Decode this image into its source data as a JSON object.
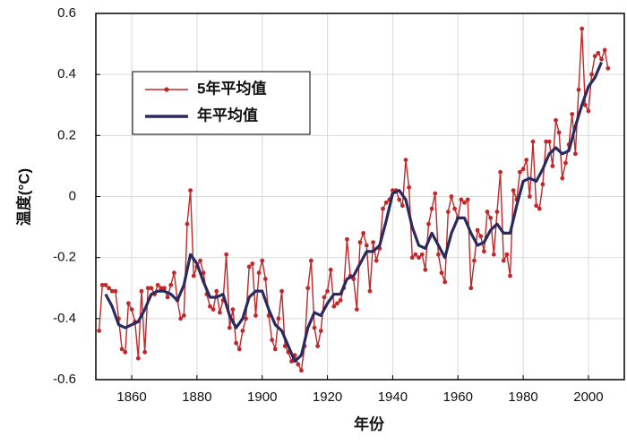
{
  "chart_data": {
    "type": "line",
    "xlabel": "年份",
    "ylabel": "温度(°C)",
    "x": [
      1850,
      1851,
      1852,
      1853,
      1854,
      1855,
      1856,
      1857,
      1858,
      1859,
      1860,
      1861,
      1862,
      1863,
      1864,
      1865,
      1866,
      1867,
      1868,
      1869,
      1870,
      1871,
      1872,
      1873,
      1874,
      1875,
      1876,
      1877,
      1878,
      1879,
      1880,
      1881,
      1882,
      1883,
      1884,
      1885,
      1886,
      1887,
      1888,
      1889,
      1890,
      1891,
      1892,
      1893,
      1894,
      1895,
      1896,
      1897,
      1898,
      1899,
      1900,
      1901,
      1902,
      1903,
      1904,
      1905,
      1906,
      1907,
      1908,
      1909,
      1910,
      1911,
      1912,
      1913,
      1914,
      1915,
      1916,
      1917,
      1918,
      1919,
      1920,
      1921,
      1922,
      1923,
      1924,
      1925,
      1926,
      1927,
      1928,
      1929,
      1930,
      1931,
      1932,
      1933,
      1934,
      1935,
      1936,
      1937,
      1938,
      1939,
      1940,
      1941,
      1942,
      1943,
      1944,
      1945,
      1946,
      1947,
      1948,
      1949,
      1950,
      1951,
      1952,
      1953,
      1954,
      1955,
      1956,
      1957,
      1958,
      1959,
      1960,
      1961,
      1962,
      1963,
      1964,
      1965,
      1966,
      1967,
      1968,
      1969,
      1970,
      1971,
      1972,
      1973,
      1974,
      1975,
      1976,
      1977,
      1978,
      1979,
      1980,
      1981,
      1982,
      1983,
      1984,
      1985,
      1986,
      1987,
      1988,
      1989,
      1990,
      1991,
      1992,
      1993,
      1994,
      1995,
      1996,
      1997,
      1998,
      1999,
      2000,
      2001,
      2002,
      2003,
      2004,
      2005,
      2006
    ],
    "series": [
      {
        "name": "5年平均值",
        "color": "#c0282a",
        "marker": true,
        "values": [
          -0.44,
          -0.29,
          -0.29,
          -0.3,
          -0.31,
          -0.31,
          -0.4,
          -0.5,
          -0.51,
          -0.35,
          -0.37,
          -0.41,
          -0.53,
          -0.31,
          -0.51,
          -0.3,
          -0.3,
          -0.32,
          -0.29,
          -0.3,
          -0.3,
          -0.33,
          -0.29,
          -0.25,
          -0.34,
          -0.4,
          -0.39,
          -0.09,
          0.02,
          -0.26,
          -0.23,
          -0.21,
          -0.25,
          -0.32,
          -0.36,
          -0.37,
          -0.31,
          -0.38,
          -0.34,
          -0.19,
          -0.43,
          -0.37,
          -0.48,
          -0.5,
          -0.44,
          -0.4,
          -0.23,
          -0.22,
          -0.39,
          -0.25,
          -0.21,
          -0.27,
          -0.39,
          -0.47,
          -0.5,
          -0.4,
          -0.31,
          -0.49,
          -0.51,
          -0.54,
          -0.52,
          -0.55,
          -0.57,
          -0.49,
          -0.3,
          -0.21,
          -0.43,
          -0.49,
          -0.44,
          -0.33,
          -0.31,
          -0.24,
          -0.36,
          -0.35,
          -0.34,
          -0.3,
          -0.14,
          -0.26,
          -0.27,
          -0.37,
          -0.15,
          -0.12,
          -0.16,
          -0.31,
          -0.15,
          -0.21,
          -0.17,
          -0.04,
          -0.02,
          -0.01,
          0.02,
          0.02,
          -0.01,
          -0.03,
          0.12,
          0.03,
          -0.2,
          -0.19,
          -0.2,
          -0.19,
          -0.24,
          -0.09,
          -0.04,
          0.01,
          -0.19,
          -0.25,
          -0.28,
          -0.05,
          0.0,
          -0.04,
          -0.07,
          -0.01,
          -0.02,
          -0.01,
          -0.3,
          -0.21,
          -0.11,
          -0.13,
          -0.18,
          -0.05,
          -0.07,
          -0.19,
          -0.05,
          0.08,
          -0.21,
          -0.19,
          -0.26,
          0.02,
          -0.01,
          0.08,
          0.09,
          0.12,
          0.0,
          0.18,
          -0.03,
          -0.04,
          0.04,
          0.18,
          0.18,
          0.1,
          0.25,
          0.21,
          0.06,
          0.11,
          0.17,
          0.27,
          0.14,
          0.35,
          0.55,
          0.3,
          0.28,
          0.4,
          0.46,
          0.47,
          0.45,
          0.48,
          0.42
        ]
      },
      {
        "name": "年平均值",
        "color": "#2b2a5e",
        "marker": false,
        "x": [
          1852,
          1854,
          1856,
          1858,
          1860,
          1862,
          1864,
          1866,
          1868,
          1870,
          1872,
          1874,
          1876,
          1878,
          1880,
          1882,
          1884,
          1886,
          1888,
          1890,
          1892,
          1894,
          1896,
          1898,
          1900,
          1902,
          1904,
          1906,
          1908,
          1910,
          1912,
          1914,
          1916,
          1918,
          1920,
          1922,
          1924,
          1926,
          1928,
          1930,
          1932,
          1934,
          1936,
          1938,
          1940,
          1942,
          1944,
          1946,
          1948,
          1950,
          1952,
          1954,
          1956,
          1958,
          1960,
          1962,
          1964,
          1966,
          1968,
          1970,
          1972,
          1974,
          1976,
          1978,
          1980,
          1982,
          1984,
          1986,
          1988,
          1990,
          1992,
          1994,
          1996,
          1998,
          2000,
          2002,
          2004
        ],
        "values": [
          -0.32,
          -0.36,
          -0.42,
          -0.43,
          -0.42,
          -0.41,
          -0.37,
          -0.32,
          -0.31,
          -0.31,
          -0.32,
          -0.34,
          -0.29,
          -0.19,
          -0.22,
          -0.28,
          -0.33,
          -0.33,
          -0.32,
          -0.39,
          -0.43,
          -0.4,
          -0.33,
          -0.31,
          -0.31,
          -0.37,
          -0.42,
          -0.44,
          -0.49,
          -0.54,
          -0.52,
          -0.43,
          -0.38,
          -0.39,
          -0.35,
          -0.32,
          -0.32,
          -0.27,
          -0.26,
          -0.22,
          -0.18,
          -0.18,
          -0.16,
          -0.08,
          0.01,
          0.02,
          -0.01,
          -0.1,
          -0.16,
          -0.17,
          -0.12,
          -0.16,
          -0.2,
          -0.12,
          -0.07,
          -0.07,
          -0.12,
          -0.16,
          -0.15,
          -0.11,
          -0.09,
          -0.12,
          -0.12,
          -0.03,
          0.05,
          0.06,
          0.05,
          0.09,
          0.14,
          0.16,
          0.14,
          0.15,
          0.23,
          0.3,
          0.36,
          0.39,
          0.44
        ]
      }
    ],
    "xlim": [
      1849,
      2011
    ],
    "xticks": [
      1860,
      1880,
      1900,
      1920,
      1940,
      1960,
      1980,
      2000
    ],
    "ylim": [
      -0.6,
      0.6
    ],
    "yticks": [
      -0.6,
      -0.4,
      -0.2,
      0,
      0.2,
      0.4,
      0.6
    ],
    "grid": true,
    "legend": "upper left"
  }
}
